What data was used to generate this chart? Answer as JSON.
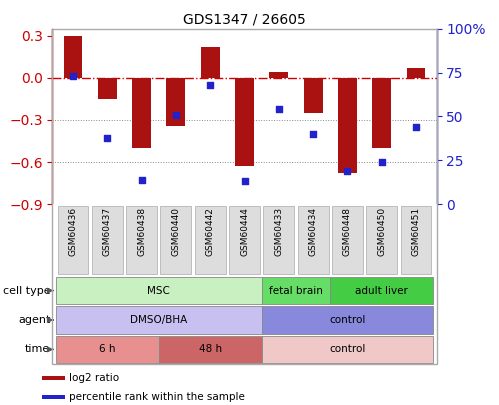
{
  "title": "GDS1347 / 26605",
  "samples": [
    "GSM60436",
    "GSM60437",
    "GSM60438",
    "GSM60440",
    "GSM60442",
    "GSM60444",
    "GSM60433",
    "GSM60434",
    "GSM60448",
    "GSM60450",
    "GSM60451"
  ],
  "log2_ratio": [
    0.3,
    -0.15,
    -0.5,
    -0.34,
    0.22,
    -0.63,
    0.04,
    -0.25,
    -0.68,
    -0.5,
    0.07
  ],
  "pct_rank": [
    73,
    38,
    14,
    51,
    68,
    13,
    54,
    40,
    19,
    24,
    44
  ],
  "bar_color": "#aa1111",
  "dot_color": "#2222cc",
  "left_ylim": [
    -0.9,
    0.35
  ],
  "right_ylim": [
    0,
    100
  ],
  "left_yticks": [
    -0.9,
    -0.6,
    -0.3,
    0.0,
    0.3
  ],
  "right_yticks": [
    0,
    25,
    50,
    75,
    100
  ],
  "right_yticklabels": [
    "0",
    "25",
    "50",
    "75",
    "100%"
  ],
  "hline_color": "#cc0000",
  "dotted_color": "#888888",
  "grid_dotted_values": [
    -0.3,
    -0.6
  ],
  "cell_type_spans": [
    {
      "label": "MSC",
      "start": 0,
      "end": 5,
      "color": "#c8f0c0"
    },
    {
      "label": "fetal brain",
      "start": 6,
      "end": 7,
      "color": "#66dd66"
    },
    {
      "label": "adult liver",
      "start": 8,
      "end": 10,
      "color": "#44cc44"
    }
  ],
  "agent_spans": [
    {
      "label": "DMSO/BHA",
      "start": 0,
      "end": 5,
      "color": "#c8c0f0"
    },
    {
      "label": "control",
      "start": 6,
      "end": 10,
      "color": "#8888dd"
    }
  ],
  "time_spans": [
    {
      "label": "6 h",
      "start": 0,
      "end": 2,
      "color": "#e89090"
    },
    {
      "label": "48 h",
      "start": 3,
      "end": 5,
      "color": "#cc6666"
    },
    {
      "label": "control",
      "start": 6,
      "end": 10,
      "color": "#f0c8c8"
    }
  ],
  "legend_items": [
    {
      "color": "#aa1111",
      "label": "log2 ratio"
    },
    {
      "color": "#2222cc",
      "label": "percentile rank within the sample"
    }
  ],
  "row_labels": [
    "cell type",
    "agent",
    "time"
  ],
  "label_color": "#333333",
  "tick_label_bg": "#dddddd"
}
